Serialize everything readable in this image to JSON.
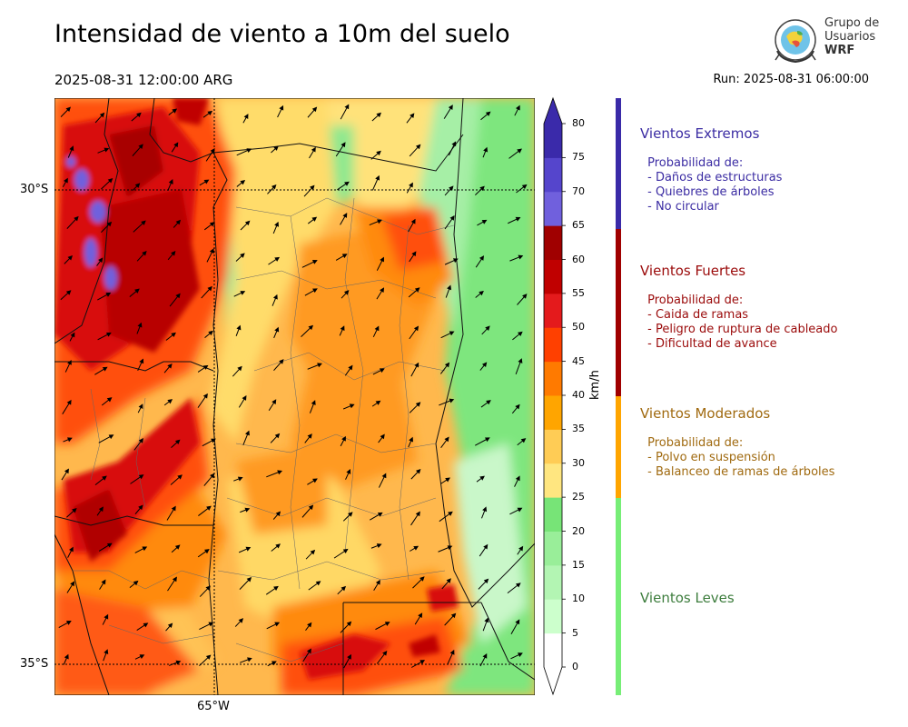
{
  "title": "Intensidad de viento a 10m del suelo",
  "valid_time": "2025-08-31 12:00:00 ARG",
  "run_time": "Run: 2025-08-31 06:00:00",
  "logo": {
    "line1": "Grupo de",
    "line2": "Usuarios",
    "line3": "WRF"
  },
  "map": {
    "lat_labels": [
      "30°S",
      "35°S"
    ],
    "lon_labels": [
      "65°W"
    ]
  },
  "colorbar": {
    "unit": "km/h",
    "ticks": [
      "0",
      "5",
      "10",
      "15",
      "20",
      "25",
      "30",
      "35",
      "40",
      "45",
      "50",
      "55",
      "60",
      "65",
      "70",
      "75",
      "80"
    ],
    "colors": [
      "#ffffff",
      "#ccffcc",
      "#b3f5b3",
      "#99ee99",
      "#77e477",
      "#ffe680",
      "#ffcc55",
      "#ffa500",
      "#ff7a00",
      "#ff4000",
      "#e41a1c",
      "#c00000",
      "#a00000",
      "#7060dd",
      "#5545cc",
      "#3a2aaa"
    ],
    "over_color": "#3a2aaa"
  },
  "categories": [
    {
      "name": "Vientos Extremos",
      "color": "#3a2aa8",
      "text_color": "#3b2ca3",
      "desc": " Probabilidad de:\n - Daños de estructuras\n - Quiebres de árboles\n - No circular"
    },
    {
      "name": "Vientos Fuertes",
      "color": "#a00000",
      "text_color": "#9b0b0b",
      "desc": " Probabilidad de:\n - Caida de ramas\n - Peligro de ruptura de cableado\n - Dificultad de avance"
    },
    {
      "name": "Vientos Moderados",
      "color": "#ffa500",
      "text_color": "#a06a10",
      "desc": " Probabilidad de:\n - Polvo en suspensión\n - Balanceo de ramas de árboles"
    },
    {
      "name": "Vientos Leves",
      "color": "#77ee77",
      "text_color": "#3d7d3d",
      "desc": ""
    }
  ]
}
